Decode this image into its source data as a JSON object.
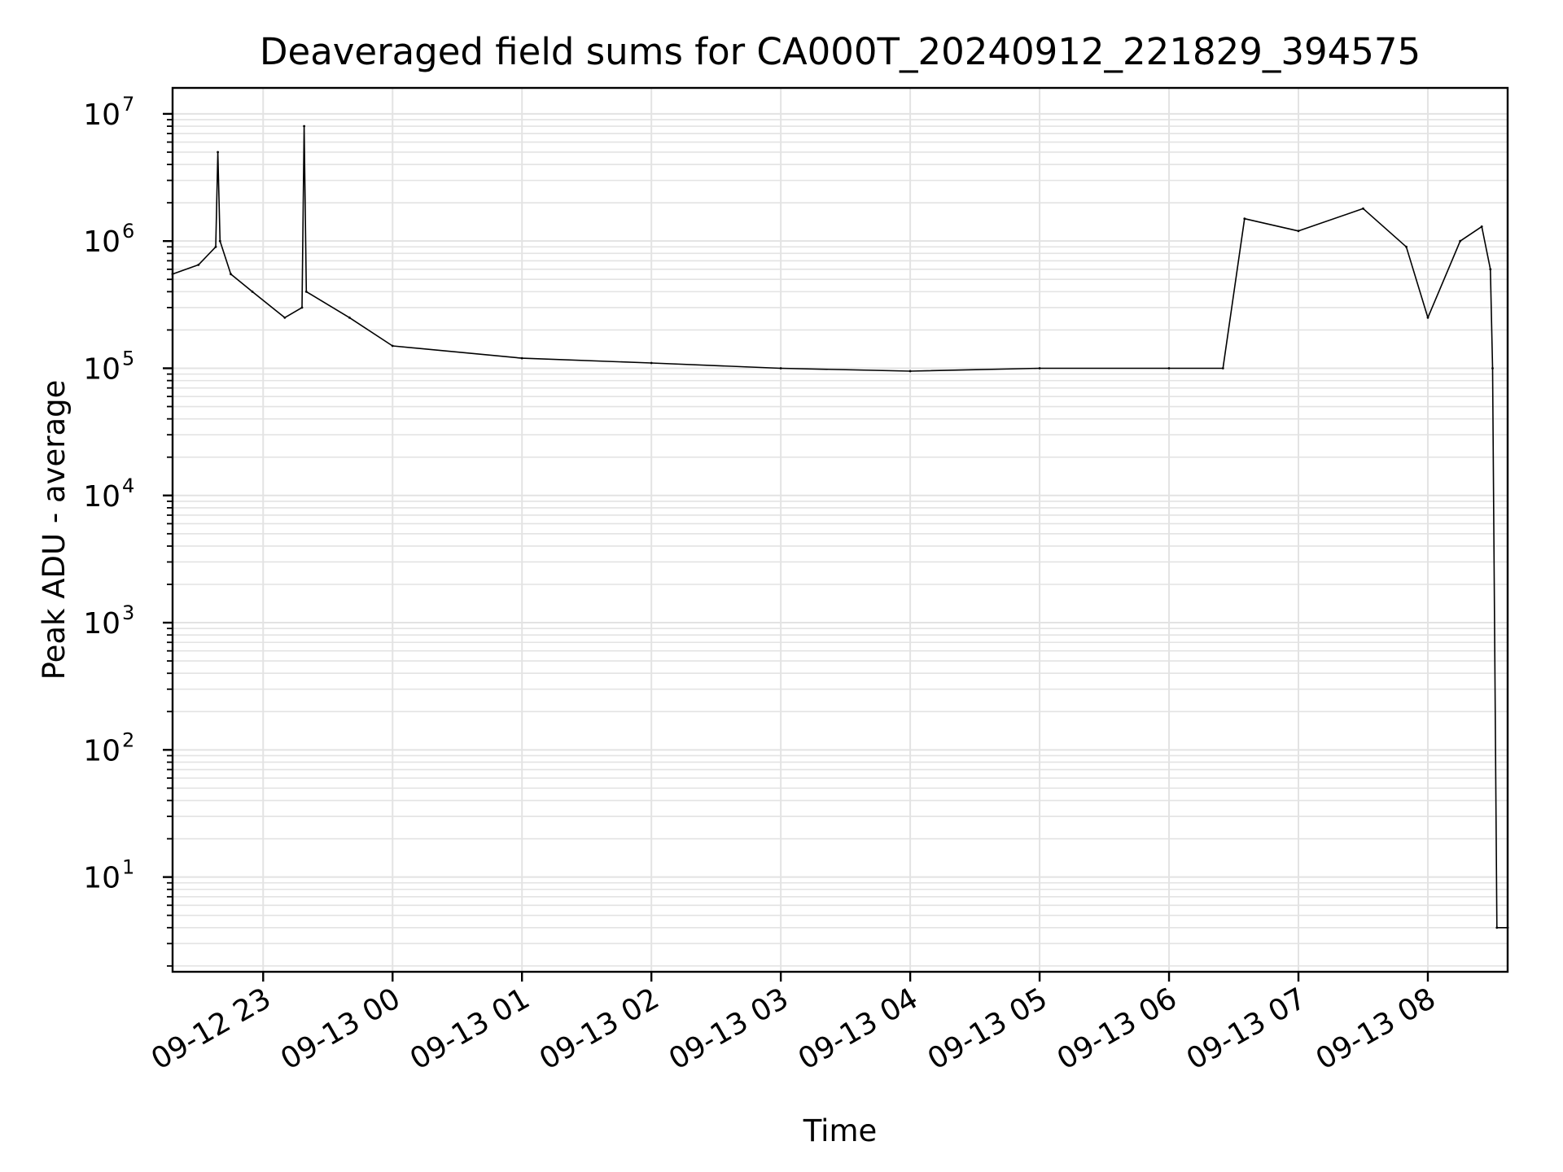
{
  "chart_data": {
    "type": "line",
    "title": "Deaveraged field sums for CA000T_20240912_221829_394575",
    "xlabel": "Time",
    "ylabel": "Peak ADU - average",
    "yscale": "log",
    "ylim": [
      1.8,
      16000000
    ],
    "xlim": [
      "09-12 22:18",
      "09-13 08:37"
    ],
    "grid": "major and minor",
    "line_color": "#000000",
    "grid_color": "#e3e3e3",
    "x_ticks": [
      "09-12 23",
      "09-13 00",
      "09-13 01",
      "09-13 02",
      "09-13 03",
      "09-13 04",
      "09-13 05",
      "09-13 06",
      "09-13 07",
      "09-13 08"
    ],
    "y_ticks": [
      {
        "base": "10",
        "exp": "1",
        "value": 10
      },
      {
        "base": "10",
        "exp": "2",
        "value": 100
      },
      {
        "base": "10",
        "exp": "3",
        "value": 1000
      },
      {
        "base": "10",
        "exp": "4",
        "value": 10000
      },
      {
        "base": "10",
        "exp": "5",
        "value": 100000
      },
      {
        "base": "10",
        "exp": "6",
        "value": 1000000
      },
      {
        "base": "10",
        "exp": "7",
        "value": 10000000
      }
    ],
    "series": [
      {
        "x": [
          "09-12 22:18",
          "09-12 22:30",
          "09-12 22:38",
          "09-12 22:39",
          "09-12 22:40",
          "09-12 22:45",
          "09-12 22:55",
          "09-12 23:10",
          "09-12 23:18",
          "09-12 23:19",
          "09-12 23:20",
          "09-12 23:40",
          "09-13 00:00",
          "09-13 01:00",
          "09-13 02:00",
          "09-13 03:00",
          "09-13 04:00",
          "09-13 05:00",
          "09-13 06:00",
          "09-13 06:25",
          "09-13 06:35",
          "09-13 07:00",
          "09-13 07:30",
          "09-13 07:50",
          "09-13 08:00",
          "09-13 08:15",
          "09-13 08:25",
          "09-13 08:29",
          "09-13 08:30",
          "09-13 08:32",
          "09-13 08:37"
        ],
        "values": [
          550000,
          650000,
          900000,
          5000000,
          1000000,
          550000,
          400000,
          250000,
          300000,
          8000000,
          400000,
          250000,
          150000,
          120000,
          110000,
          100000,
          95000,
          100000,
          100000,
          100000,
          1500000,
          1200000,
          1800000,
          900000,
          250000,
          1000000,
          1300000,
          600000,
          100000,
          4,
          4
        ]
      }
    ]
  }
}
